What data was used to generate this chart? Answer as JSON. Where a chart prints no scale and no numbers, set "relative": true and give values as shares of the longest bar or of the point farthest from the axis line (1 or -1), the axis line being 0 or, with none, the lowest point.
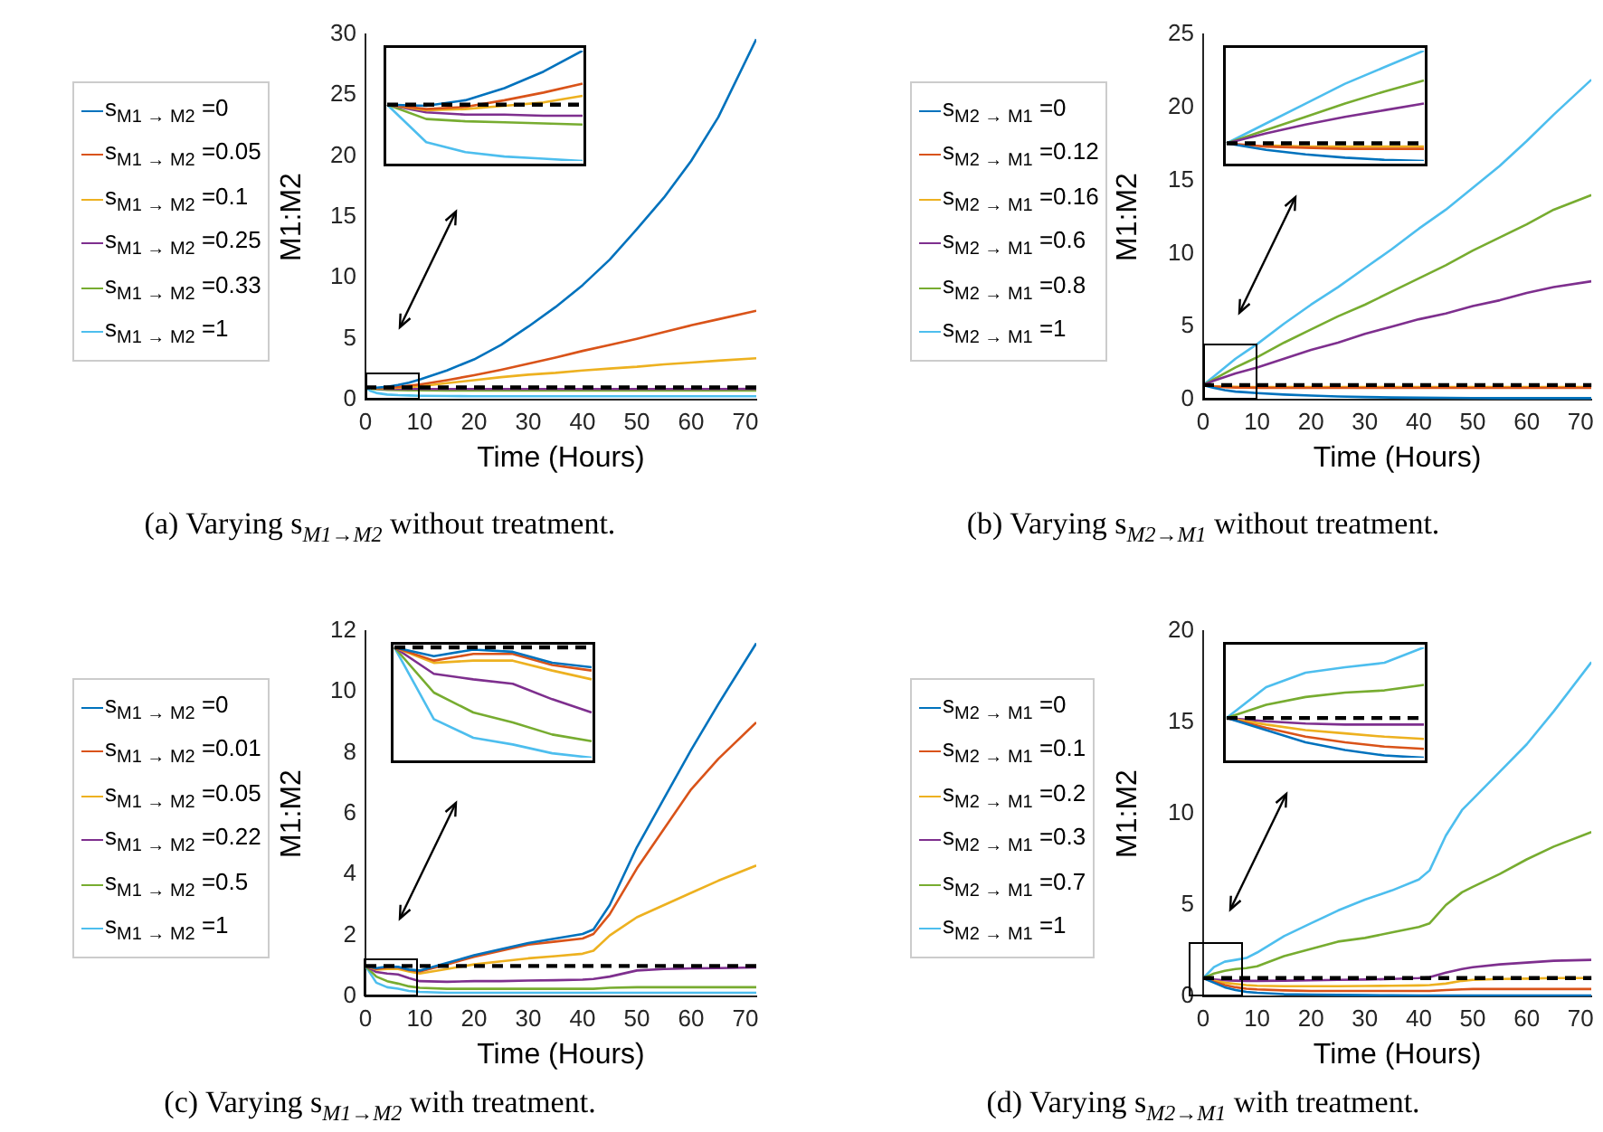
{
  "chart_data": [
    {
      "type": "line",
      "xlabel": "Time (Hours)",
      "ylabel": "M1:M2",
      "annotations": [
        "(a) Varying s$_{M1→M2}$ without treatment."
      ],
      "legend": "left",
      "x": [
        0,
        1,
        2,
        4,
        6,
        8,
        10,
        15,
        20,
        25,
        30,
        35,
        40,
        45,
        50,
        55,
        60,
        65,
        72
      ],
      "xlim": [
        0,
        72
      ],
      "ylim": [
        0,
        30
      ],
      "xticks": [
        0,
        10,
        20,
        30,
        40,
        50,
        60,
        70
      ],
      "yticks": [
        0,
        5,
        10,
        15,
        20,
        25,
        30
      ],
      "ref_lines": [
        {
          "axis": "y",
          "value": 1,
          "color": "#000000",
          "line_style": "dashed"
        }
      ],
      "series": [
        {
          "name": "s$_{M1 → M2}$ =0",
          "color": "#0072bd",
          "values": [
            1,
            0.98,
            0.98,
            1.05,
            1.2,
            1.4,
            1.65,
            2.4,
            3.3,
            4.5,
            6.0,
            7.6,
            9.4,
            11.5,
            14,
            16.6,
            19.6,
            23.2,
            29.6
          ]
        },
        {
          "name": "s$_{M1 → M2}$ =0.05",
          "color": "#d95319",
          "values": [
            null,
            0.96,
            0.95,
            0.97,
            1.05,
            1.15,
            1.25,
            1.6,
            2.0,
            2.45,
            2.95,
            3.45,
            4.0,
            4.5,
            5.0,
            5.55,
            6.1,
            6.6,
            7.3
          ]
        },
        {
          "name": "s$_{M1 → M2}$ =0.1",
          "color": "#edb120",
          "values": [
            null,
            null,
            0.93,
            0.94,
            0.98,
            1.03,
            1.1,
            1.35,
            1.6,
            1.85,
            2.05,
            2.2,
            2.4,
            2.55,
            2.7,
            2.9,
            3.05,
            3.2,
            3.4
          ]
        },
        {
          "name": "s$_{M1 → M2}$ =0.25",
          "color": "#7e2f8e",
          "values": [
            null,
            null,
            0.9,
            0.88,
            0.88,
            0.87,
            0.87,
            0.87,
            0.87,
            0.87,
            0.87,
            0.87,
            0.87,
            0.87,
            0.87,
            0.87,
            0.87,
            0.87,
            0.88
          ]
        },
        {
          "name": "s$_{M1 → M2}$ =0.33",
          "color": "#77ac30",
          "values": [
            null,
            0.9,
            0.85,
            0.8,
            0.78,
            0.77,
            0.76,
            0.75,
            0.75,
            0.75,
            0.75,
            0.75,
            0.75,
            0.75,
            0.75,
            0.75,
            0.75,
            0.75,
            0.75
          ]
        },
        {
          "name": "s$_{M1 → M2}$ =1",
          "color": "#4dbeee",
          "values": [
            1,
            0.7,
            0.55,
            0.42,
            0.37,
            0.34,
            0.32,
            0.3,
            0.28,
            0.28,
            0.28,
            0.28,
            0.28,
            0.28,
            0.28,
            0.28,
            0.28,
            0.28,
            0.28
          ]
        }
      ]
    },
    {
      "type": "line",
      "relative": true,
      "categories": [
        null,
        null,
        null,
        null,
        null,
        null
      ],
      "ref_lines": [
        {
          "axis": "y",
          "value": 0.51,
          "color": "#000000",
          "line_style": "dashed"
        }
      ],
      "series": [
        {
          "color": "#0072bd",
          "values": [
            0.51,
            0.5,
            0.55,
            0.66,
            0.81,
            1
          ]
        },
        {
          "color": "#d95319",
          "values": [
            0.51,
            0.47,
            0.49,
            0.55,
            0.62,
            0.7
          ]
        },
        {
          "color": "#edb120",
          "values": [
            0.51,
            0.46,
            0.47,
            0.5,
            0.53,
            0.59
          ]
        },
        {
          "color": "#7e2f8e",
          "values": [
            0.51,
            0.44,
            0.42,
            0.42,
            0.41,
            0.41
          ]
        },
        {
          "color": "#77ac30",
          "values": [
            0.51,
            0.38,
            0.36,
            0.35,
            0.34,
            0.33
          ]
        },
        {
          "color": "#4dbeee",
          "values": [
            0.51,
            0.17,
            0.08,
            0.04,
            0.02,
            0
          ]
        }
      ]
    },
    {
      "type": "line",
      "xlabel": "Time (Hours)",
      "ylabel": "M1:M2",
      "annotations": [
        "(b) Varying s$_{M2→M1}$ without treatment."
      ],
      "legend": "left",
      "x": [
        0,
        1,
        2,
        4,
        6,
        8,
        10,
        15,
        20,
        25,
        30,
        35,
        40,
        45,
        50,
        55,
        60,
        65,
        72
      ],
      "xlim": [
        0,
        72
      ],
      "ylim": [
        0,
        25
      ],
      "xticks": [
        0,
        10,
        20,
        30,
        40,
        50,
        60,
        70
      ],
      "yticks": [
        0,
        5,
        10,
        15,
        20,
        25
      ],
      "ref_lines": [
        {
          "axis": "y",
          "value": 1,
          "color": "#000000",
          "line_style": "dashed"
        }
      ],
      "series": [
        {
          "name": "s$_{M2 → M1}$ =0",
          "color": "#0072bd",
          "values": [
            1,
            0.9,
            0.8,
            0.65,
            0.55,
            0.5,
            0.45,
            0.35,
            0.28,
            0.22,
            0.18,
            0.15,
            0.13,
            0.12,
            0.11,
            0.1,
            0.1,
            0.1,
            0.1
          ]
        },
        {
          "name": "s$_{M2 → M1}$ =0.12",
          "color": "#d95319",
          "values": [
            1,
            0.95,
            0.9,
            0.85,
            0.83,
            0.82,
            0.81,
            0.8,
            0.8,
            0.8,
            0.8,
            0.8,
            0.8,
            0.8,
            0.8,
            0.8,
            0.8,
            0.8,
            0.8
          ]
        },
        {
          "name": "s$_{M2 → M1}$ =0.16",
          "color": "#edb120",
          "values": [
            null,
            0.96,
            0.93,
            0.9,
            0.88,
            0.87,
            0.87,
            0.87,
            0.87,
            0.87,
            0.87,
            0.87,
            0.87,
            0.87,
            0.87,
            0.87,
            0.87,
            0.87,
            0.87
          ]
        },
        {
          "name": "s$_{M2 → M1}$ =0.6",
          "color": "#7e2f8e",
          "values": [
            1,
            1.15,
            1.3,
            1.55,
            1.8,
            2.0,
            2.2,
            2.8,
            3.4,
            3.9,
            4.5,
            5.0,
            5.5,
            5.9,
            6.4,
            6.8,
            7.3,
            7.7,
            8.1
          ]
        },
        {
          "name": "s$_{M2 → M1}$ =0.8",
          "color": "#77ac30",
          "values": [
            1,
            1.2,
            1.4,
            1.8,
            2.2,
            2.55,
            2.9,
            3.9,
            4.8,
            5.7,
            6.5,
            7.4,
            8.3,
            9.2,
            10.2,
            11.1,
            12.0,
            13.0,
            14.0
          ]
        },
        {
          "name": "s$_{M2 → M1}$ =1",
          "color": "#4dbeee",
          "values": [
            1,
            1.3,
            1.6,
            2.2,
            2.8,
            3.3,
            3.8,
            5.2,
            6.5,
            7.7,
            9.0,
            10.3,
            11.7,
            13.0,
            14.5,
            16.0,
            17.7,
            19.5,
            21.9
          ]
        }
      ]
    },
    {
      "type": "line",
      "relative": true,
      "categories": [
        null,
        null,
        null,
        null,
        null,
        null
      ],
      "ref_lines": [
        {
          "axis": "y",
          "value": 0.16,
          "color": "#000000",
          "line_style": "dashed"
        }
      ],
      "series": [
        {
          "color": "#0072bd",
          "values": [
            0.16,
            0.1,
            0.06,
            0.03,
            0.01,
            0
          ]
        },
        {
          "color": "#d95319",
          "values": [
            0.16,
            0.13,
            0.12,
            0.11,
            0.11,
            0.11
          ]
        },
        {
          "color": "#edb120",
          "values": [
            null,
            0.14,
            0.13,
            0.13,
            0.13,
            0.13
          ]
        },
        {
          "color": "#7e2f8e",
          "values": [
            0.16,
            0.25,
            0.33,
            0.4,
            0.46,
            0.52
          ]
        },
        {
          "color": "#77ac30",
          "values": [
            0.16,
            0.28,
            0.4,
            0.52,
            0.63,
            0.73
          ]
        },
        {
          "color": "#4dbeee",
          "values": [
            0.16,
            0.34,
            0.52,
            0.7,
            0.85,
            1
          ]
        }
      ]
    },
    {
      "type": "line",
      "xlabel": "Time (Hours)",
      "ylabel": "M1:M2",
      "annotations": [
        "(c) Varying s$_{M1→M2}$ with treatment."
      ],
      "legend": "left",
      "x": [
        0,
        2,
        4,
        6,
        8,
        10,
        15,
        20,
        25,
        30,
        35,
        40,
        42,
        45,
        50,
        55,
        60,
        65,
        72
      ],
      "xlim": [
        0,
        72
      ],
      "ylim": [
        0,
        12
      ],
      "xticks": [
        0,
        10,
        20,
        30,
        40,
        50,
        60,
        70
      ],
      "yticks": [
        0,
        2,
        4,
        6,
        8,
        10,
        12
      ],
      "ref_lines": [
        {
          "axis": "y",
          "value": 1,
          "color": "#000000",
          "line_style": "dashed"
        }
      ],
      "series": [
        {
          "name": "s$_{M1 → M2}$ =0",
          "color": "#0072bd",
          "values": [
            1,
            0.93,
            0.98,
            0.97,
            0.88,
            0.85,
            1.1,
            1.35,
            1.55,
            1.75,
            1.9,
            2.05,
            2.2,
            3.0,
            4.9,
            6.5,
            8.1,
            9.6,
            11.6
          ]
        },
        {
          "name": "s$_{M1 → M2}$ =0.01",
          "color": "#d95319",
          "values": [
            1,
            0.9,
            0.95,
            0.95,
            0.86,
            0.82,
            1.05,
            1.3,
            1.5,
            1.7,
            1.8,
            1.9,
            2.05,
            2.7,
            4.2,
            5.5,
            6.8,
            7.8,
            9.0
          ]
        },
        {
          "name": "s$_{M1 → M2}$ =0.05",
          "color": "#edb120",
          "values": [
            1,
            0.88,
            0.9,
            0.9,
            0.82,
            0.75,
            0.9,
            1.05,
            1.15,
            1.25,
            1.32,
            1.4,
            1.5,
            2.0,
            2.6,
            3.0,
            3.4,
            3.8,
            4.3
          ]
        },
        {
          "name": "s$_{M1 → M2}$ =0.22",
          "color": "#7e2f8e",
          "values": [
            1,
            0.8,
            0.75,
            0.72,
            0.6,
            0.5,
            0.48,
            0.5,
            0.5,
            0.52,
            0.53,
            0.55,
            0.57,
            0.65,
            0.85,
            0.9,
            0.92,
            0.93,
            0.95
          ]
        },
        {
          "name": "s$_{M1 → M2}$ =0.5",
          "color": "#77ac30",
          "values": [
            1,
            0.65,
            0.5,
            0.42,
            0.33,
            0.28,
            0.25,
            0.25,
            0.25,
            0.25,
            0.25,
            0.25,
            0.25,
            0.28,
            0.3,
            0.3,
            0.3,
            0.3,
            0.3
          ]
        },
        {
          "name": "s$_{M1 → M2}$ =1",
          "color": "#4dbeee",
          "values": [
            1,
            0.45,
            0.3,
            0.25,
            0.18,
            0.15,
            0.12,
            0.12,
            0.12,
            0.12,
            0.12,
            0.12,
            0.12,
            0.12,
            0.12,
            0.12,
            0.12,
            0.12,
            0.12
          ]
        }
      ]
    },
    {
      "type": "line",
      "relative": true,
      "categories": [
        null,
        null,
        null,
        null,
        null,
        null
      ],
      "ref_lines": [
        {
          "axis": "y",
          "value": 1,
          "color": "#000000",
          "line_style": "dashed"
        }
      ],
      "series": [
        {
          "color": "#0072bd",
          "values": [
            1,
            0.92,
            0.98,
            0.96,
            0.86,
            0.82
          ]
        },
        {
          "color": "#d95319",
          "values": [
            1,
            0.88,
            0.94,
            0.94,
            0.84,
            0.79
          ]
        },
        {
          "color": "#edb120",
          "values": [
            1,
            0.86,
            0.88,
            0.88,
            0.79,
            0.71
          ]
        },
        {
          "color": "#7e2f8e",
          "values": [
            1,
            0.76,
            0.71,
            0.67,
            0.53,
            0.41
          ]
        },
        {
          "color": "#77ac30",
          "values": [
            1,
            0.59,
            0.41,
            0.32,
            0.21,
            0.15
          ]
        },
        {
          "color": "#4dbeee",
          "values": [
            1,
            0.35,
            0.18,
            0.12,
            0.04,
            0
          ]
        }
      ]
    },
    {
      "type": "line",
      "xlabel": "Time (Hours)",
      "ylabel": "M1:M2",
      "annotations": [
        "(d) Varying s$_{M2→M1}$ with treatment."
      ],
      "legend": "left",
      "x": [
        0,
        2,
        4,
        6,
        8,
        10,
        15,
        20,
        25,
        30,
        35,
        40,
        42,
        45,
        48,
        50,
        55,
        60,
        65,
        72
      ],
      "xlim": [
        0,
        72
      ],
      "ylim": [
        0,
        20
      ],
      "xticks": [
        0,
        10,
        20,
        30,
        40,
        50,
        60,
        70
      ],
      "yticks": [
        0,
        5,
        10,
        15,
        20
      ],
      "ref_lines": [
        {
          "axis": "y",
          "value": 1,
          "color": "#000000",
          "line_style": "dashed"
        }
      ],
      "series": [
        {
          "name": "s$_{M2 → M1}$ =0",
          "color": "#0072bd",
          "values": [
            1,
            0.75,
            0.5,
            0.35,
            0.25,
            0.2,
            0.12,
            0.1,
            0.08,
            0.07,
            0.06,
            0.05,
            0.05,
            0.05,
            0.05,
            0.05,
            0.05,
            0.05,
            0.05,
            0.05
          ]
        },
        {
          "name": "s$_{M2 → M1}$ =0.1",
          "color": "#d95319",
          "values": [
            1,
            0.8,
            0.62,
            0.5,
            0.42,
            0.38,
            0.33,
            0.3,
            0.3,
            0.3,
            0.3,
            0.3,
            0.3,
            0.35,
            0.38,
            0.4,
            0.4,
            0.4,
            0.4,
            0.4
          ]
        },
        {
          "name": "s$_{M2 → M1}$ =0.2",
          "color": "#edb120",
          "values": [
            1,
            0.85,
            0.75,
            0.68,
            0.62,
            0.58,
            0.56,
            0.56,
            0.56,
            0.57,
            0.58,
            0.6,
            0.62,
            0.7,
            0.85,
            0.9,
            0.95,
            0.97,
            1.0,
            1.0
          ]
        },
        {
          "name": "s$_{M2 → M1}$ =0.3",
          "color": "#7e2f8e",
          "values": [
            1,
            0.92,
            0.88,
            0.86,
            0.85,
            0.85,
            0.86,
            0.88,
            0.9,
            0.92,
            0.95,
            1.0,
            1.05,
            1.3,
            1.5,
            1.6,
            1.75,
            1.85,
            1.95,
            2.0
          ]
        },
        {
          "name": "s$_{M2 → M1}$ =0.7",
          "color": "#77ac30",
          "values": [
            1,
            1.25,
            1.4,
            1.5,
            1.55,
            1.65,
            2.2,
            2.6,
            3.0,
            3.2,
            3.5,
            3.8,
            4.0,
            5.0,
            5.7,
            6.0,
            6.7,
            7.5,
            8.2,
            9.0
          ]
        },
        {
          "name": "s$_{M2 → M1}$ =1",
          "color": "#4dbeee",
          "values": [
            1,
            1.6,
            1.9,
            2.0,
            2.1,
            2.4,
            3.3,
            4.0,
            4.7,
            5.3,
            5.8,
            6.4,
            6.9,
            8.8,
            10.2,
            10.8,
            12.3,
            13.8,
            15.6,
            18.3
          ]
        }
      ]
    },
    {
      "type": "line",
      "relative": true,
      "categories": [
        null,
        null,
        null,
        null,
        null,
        null
      ],
      "ref_lines": [
        {
          "axis": "y",
          "value": 0.36,
          "color": "#000000",
          "line_style": "dashed"
        }
      ],
      "series": [
        {
          "color": "#0072bd",
          "values": [
            0.36,
            0.25,
            0.14,
            0.07,
            0.02,
            0
          ]
        },
        {
          "color": "#d95319",
          "values": [
            0.36,
            0.27,
            0.19,
            0.14,
            0.1,
            0.08
          ]
        },
        {
          "color": "#edb120",
          "values": [
            0.36,
            0.3,
            0.25,
            0.22,
            0.19,
            0.17
          ]
        },
        {
          "color": "#7e2f8e",
          "values": [
            0.36,
            0.33,
            0.31,
            0.3,
            0.3,
            0.3
          ]
        },
        {
          "color": "#77ac30",
          "values": [
            0.36,
            0.48,
            0.55,
            0.59,
            0.61,
            0.66
          ]
        },
        {
          "color": "#4dbeee",
          "values": [
            0.36,
            0.64,
            0.77,
            0.82,
            0.86,
            1
          ]
        }
      ]
    }
  ]
}
